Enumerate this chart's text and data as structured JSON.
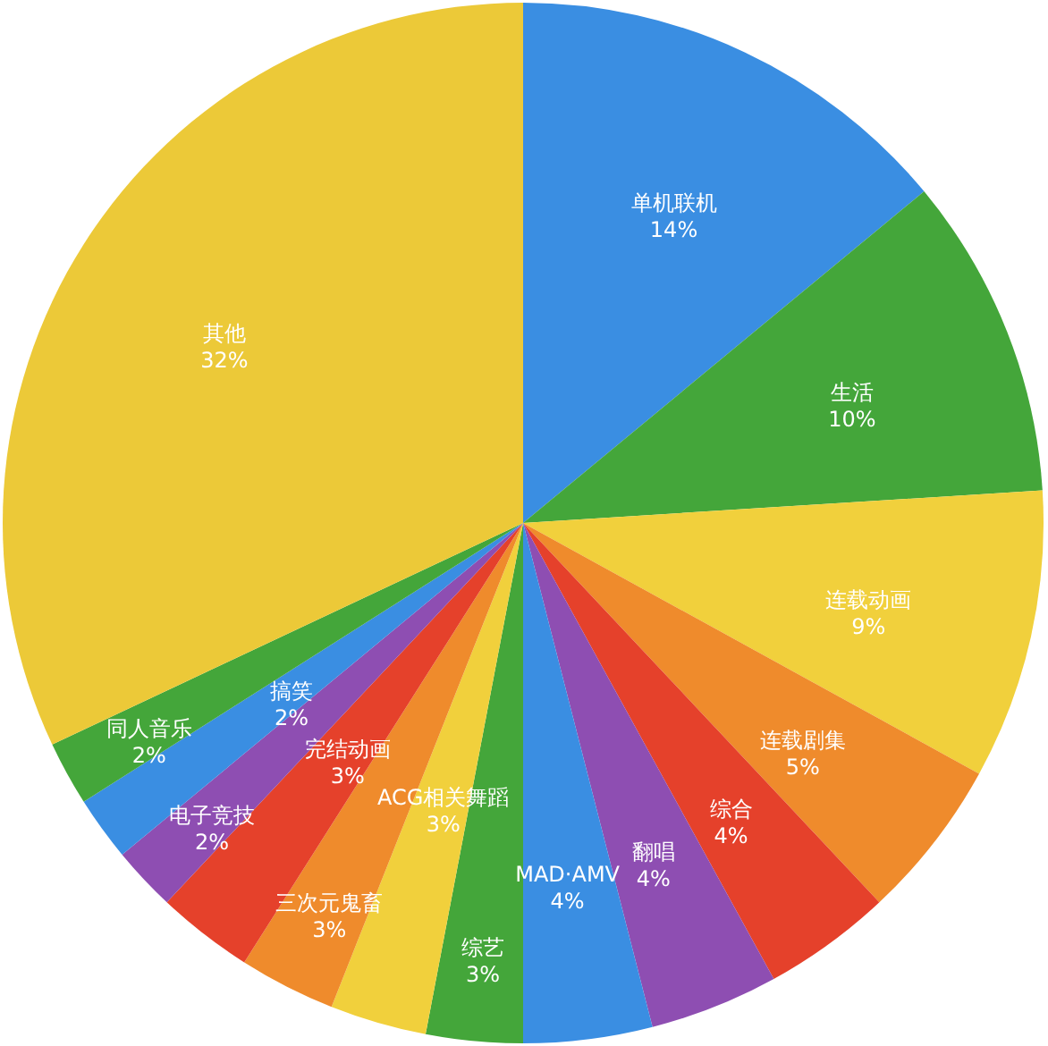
{
  "chart_data": {
    "type": "pie",
    "categories": [
      "单机联机",
      "生活",
      "连载动画",
      "连载剧集",
      "综合",
      "翻唱",
      "MAD·AMV",
      "综艺",
      "ACG相关舞蹈",
      "三次元鬼畜",
      "完结动画",
      "电子竞技",
      "搞笑",
      "同人音乐",
      "其他"
    ],
    "values": [
      14,
      10,
      9,
      5,
      4,
      4,
      4,
      3,
      3,
      3,
      3,
      2,
      2,
      2,
      32
    ],
    "value_labels": [
      "14%",
      "10%",
      "9%",
      "5%",
      "4%",
      "4%",
      "4%",
      "3%",
      "3%",
      "3%",
      "3%",
      "2%",
      "2%",
      "2%",
      "32%"
    ],
    "colors": [
      "#3a8ee2",
      "#44a63a",
      "#f1d03c",
      "#ef8b2c",
      "#e5412b",
      "#8e4eb2",
      "#3a8ee2",
      "#44a63a",
      "#f1d03c",
      "#ef8b2c",
      "#e5412b",
      "#8e4eb2",
      "#3a8ee2",
      "#44a63a",
      "#ecc938"
    ]
  }
}
